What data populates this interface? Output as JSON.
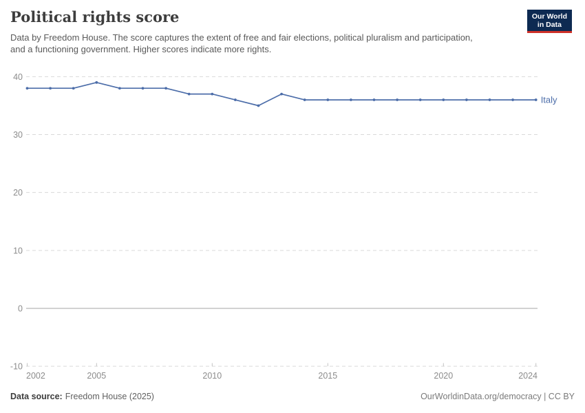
{
  "header": {
    "title": "Political rights score",
    "subtitle": "Data by Freedom House. The score captures the extent of free and fair elections, political pluralism and participation, and a functioning government. Higher scores indicate more rights.",
    "logo": {
      "line1": "Our World",
      "line2": "in Data"
    }
  },
  "chart_data": {
    "type": "line",
    "title": "Political rights score",
    "x": [
      2002,
      2003,
      2004,
      2005,
      2006,
      2007,
      2008,
      2009,
      2010,
      2011,
      2012,
      2013,
      2014,
      2015,
      2016,
      2017,
      2018,
      2019,
      2020,
      2021,
      2022,
      2023,
      2024
    ],
    "series": [
      {
        "name": "Italy",
        "values": [
          38,
          38,
          38,
          39,
          38,
          38,
          38,
          37,
          37,
          36,
          35,
          37,
          36,
          36,
          36,
          36,
          36,
          36,
          36,
          36,
          36,
          36,
          36
        ]
      }
    ],
    "x_ticks": [
      2002,
      2005,
      2010,
      2015,
      2020,
      2024
    ],
    "y_ticks": [
      40,
      30,
      20,
      10,
      0,
      -10
    ],
    "ylim": [
      -10,
      40
    ],
    "xlim": [
      2002,
      2024
    ],
    "xlabel": "",
    "ylabel": "",
    "grid": "horizontal-dashed",
    "legend_position": "inline-right"
  },
  "footer": {
    "source_label": "Data source:",
    "source_value": "Freedom House (2025)",
    "right": "OurWorldinData.org/democracy | CC BY"
  },
  "colors": {
    "line": "#4c6da9",
    "grid": "#d9d9d9",
    "zero_line": "#a6a6a6",
    "tick": "#c2c2c2",
    "axis_text": "#8c8c8c",
    "logo_bg": "#0d2a52",
    "logo_stripe": "#cf3129"
  }
}
